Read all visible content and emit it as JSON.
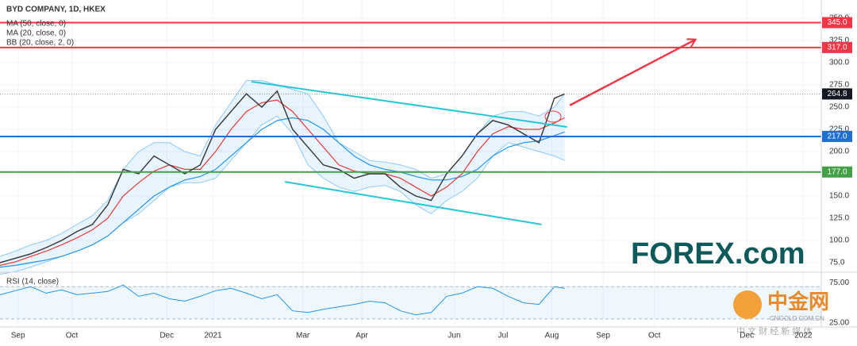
{
  "chart_data": {
    "type": "line",
    "title": "BYD COMPANY, 1D, HKEX",
    "x": [
      0,
      6,
      12,
      18,
      24,
      30,
      36,
      42,
      48,
      54,
      60,
      66,
      72,
      78,
      84,
      90,
      96,
      102,
      108,
      114,
      120,
      126,
      132,
      138,
      144,
      150,
      156,
      162,
      168,
      174,
      180,
      186,
      192,
      198,
      204,
      210,
      216,
      220
    ],
    "values": [
      75,
      80,
      85,
      92,
      100,
      110,
      118,
      140,
      180,
      175,
      195,
      185,
      175,
      185,
      225,
      245,
      265,
      250,
      268,
      225,
      205,
      185,
      180,
      170,
      175,
      175,
      160,
      150,
      145,
      175,
      195,
      220,
      235,
      230,
      220,
      210,
      260,
      264.8
    ],
    "color": "#333333",
    "series": [
      {
        "name": "MA (50, close, 0)",
        "color": "#2196f3",
        "values": [
          70,
          72,
          75,
          78,
          82,
          88,
          95,
          105,
          120,
          135,
          150,
          160,
          168,
          172,
          180,
          195,
          210,
          225,
          235,
          238,
          235,
          225,
          210,
          195,
          185,
          180,
          177,
          172,
          168,
          168,
          172,
          180,
          195,
          205,
          210,
          212,
          218,
          222
        ]
      },
      {
        "name": "MA (20, close, 0)",
        "color": "#e53935",
        "values": [
          72,
          76,
          82,
          88,
          95,
          103,
          112,
          125,
          150,
          165,
          178,
          185,
          180,
          180,
          200,
          225,
          245,
          255,
          258,
          245,
          225,
          205,
          185,
          178,
          175,
          175,
          170,
          160,
          150,
          160,
          175,
          200,
          220,
          228,
          225,
          225,
          232,
          238
        ]
      }
    ],
    "bands": {
      "name": "BB (20, close, 2, 0)",
      "color": "#90caf9",
      "upper": [
        82,
        88,
        95,
        100,
        108,
        118,
        128,
        145,
        180,
        200,
        210,
        210,
        200,
        195,
        230,
        255,
        280,
        280,
        275,
        270,
        265,
        240,
        210,
        200,
        190,
        188,
        185,
        180,
        170,
        175,
        195,
        220,
        240,
        245,
        245,
        240,
        250,
        265
      ],
      "lower": [
        62,
        65,
        70,
        76,
        82,
        88,
        95,
        105,
        120,
        130,
        145,
        160,
        165,
        165,
        170,
        190,
        210,
        230,
        240,
        220,
        185,
        170,
        160,
        155,
        160,
        162,
        155,
        140,
        130,
        145,
        155,
        170,
        195,
        210,
        205,
        200,
        195,
        190
      ]
    },
    "levels": [
      {
        "value": 345,
        "label": "345.0",
        "color": "#f23645",
        "style": "solid"
      },
      {
        "value": 317,
        "label": "317.0",
        "color": "#f23645",
        "style": "solid"
      },
      {
        "value": 264.8,
        "label": "264.8",
        "color": "#131722",
        "style": "dotted"
      },
      {
        "value": 217,
        "label": "217.0",
        "color": "#1e6fd0",
        "style": "solid"
      },
      {
        "value": 177,
        "label": "177.0",
        "color": "#43a047",
        "style": "solid"
      }
    ],
    "trendlines": [
      {
        "color": "#26c6da",
        "points": [
          [
            98,
            278.6
          ],
          [
            221,
            227.7
          ]
        ]
      },
      {
        "color": "#26c6da",
        "points": [
          [
            111,
            166
          ],
          [
            211,
            118
          ]
        ]
      }
    ],
    "arrow": {
      "color": "#f23645",
      "points": [
        [
          222,
          252
        ],
        [
          271,
          326
        ]
      ]
    },
    "xlim": [
      0,
      320
    ],
    "xticks": [
      {
        "value": 7,
        "label": "Sep"
      },
      {
        "value": 28,
        "label": "Oct"
      },
      {
        "value": 65,
        "label": "Dec"
      },
      {
        "value": 83,
        "label": "2021"
      },
      {
        "value": 118,
        "label": "Mar"
      },
      {
        "value": 141,
        "label": "Apr"
      },
      {
        "value": 177,
        "label": "Jun"
      },
      {
        "value": 196,
        "label": "Jul"
      },
      {
        "value": 215,
        "label": "Aug"
      },
      {
        "value": 235,
        "label": "Sep"
      },
      {
        "value": 255,
        "label": "Oct"
      },
      {
        "value": 291,
        "label": "Dec"
      },
      {
        "value": 313,
        "label": "2022"
      }
    ],
    "ylim": [
      67,
      366
    ],
    "yticks": [
      {
        "value": 75,
        "label": "75.0"
      },
      {
        "value": 100,
        "label": "100.0"
      },
      {
        "value": 125,
        "label": "125.0"
      },
      {
        "value": 150,
        "label": "150.0"
      },
      {
        "value": 175,
        "label": "175.0"
      },
      {
        "value": 200,
        "label": "200.0"
      },
      {
        "value": 225,
        "label": "225.0"
      },
      {
        "value": 250,
        "label": "250.0"
      },
      {
        "value": 275,
        "label": "275.0"
      },
      {
        "value": 300,
        "label": "300.0"
      },
      {
        "value": 325,
        "label": "325.0"
      },
      {
        "value": 350,
        "label": "350.0"
      }
    ],
    "grid": true,
    "rsi": {
      "title": "RSI (14, close)",
      "color": "#2196f3",
      "values": [
        60,
        65,
        70,
        62,
        66,
        60,
        62,
        64,
        72,
        58,
        62,
        55,
        52,
        58,
        65,
        68,
        62,
        55,
        60,
        40,
        38,
        42,
        45,
        48,
        52,
        50,
        40,
        35,
        38,
        58,
        62,
        70,
        68,
        58,
        50,
        48,
        70,
        68
      ],
      "band": [
        30,
        70
      ],
      "ylim": [
        22,
        86
      ],
      "yticks": [
        {
          "value": 75,
          "label": "75.00"
        },
        {
          "value": 25,
          "label": "25.00"
        }
      ]
    },
    "watermark": {
      "brand": "FOREX.com",
      "cn_name": "中金网",
      "site": "CNGOLD.COM.CN",
      "slogan": "中 文 财 经 新 媒 体"
    }
  }
}
